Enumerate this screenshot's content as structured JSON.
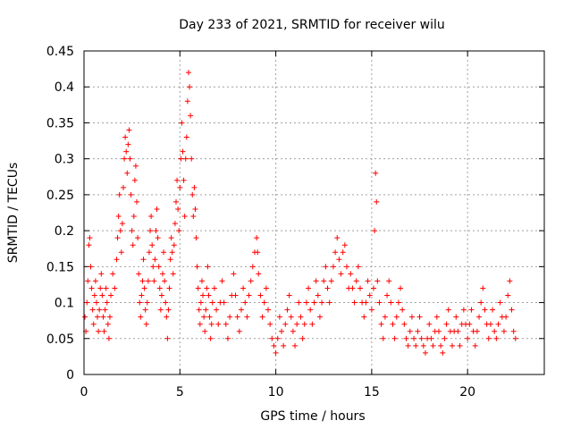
{
  "chart_data": {
    "type": "scatter",
    "title": "Day 233 of 2021, SRMTID for receiver wilu",
    "xlabel": "GPS time / hours",
    "ylabel": "SRMTID / TECUs",
    "xlim": [
      0,
      24
    ],
    "ylim": [
      0,
      0.45
    ],
    "xticks": [
      0,
      5,
      10,
      15,
      20
    ],
    "yticks": [
      0,
      0.05,
      0.1,
      0.15,
      0.2,
      0.25,
      0.3,
      0.35,
      0.4,
      0.45
    ],
    "xtick_labels": [
      "0",
      "5",
      "10",
      "15",
      "20"
    ],
    "ytick_labels": [
      "0",
      "0.05",
      "0.1",
      "0.15",
      "0.2",
      "0.25",
      "0.3",
      "0.35",
      "0.4",
      "0.45"
    ],
    "grid": true,
    "marker": "+",
    "color": "#ff0000",
    "series": [
      {
        "name": "SRMTID",
        "points": [
          [
            0.05,
            0.08
          ],
          [
            0.1,
            0.06
          ],
          [
            0.15,
            0.1
          ],
          [
            0.2,
            0.13
          ],
          [
            0.25,
            0.18
          ],
          [
            0.3,
            0.19
          ],
          [
            0.35,
            0.15
          ],
          [
            0.4,
            0.12
          ],
          [
            0.45,
            0.09
          ],
          [
            0.5,
            0.07
          ],
          [
            0.55,
            0.11
          ],
          [
            0.6,
            0.13
          ],
          [
            0.65,
            0.1
          ],
          [
            0.7,
            0.08
          ],
          [
            0.75,
            0.06
          ],
          [
            0.8,
            0.09
          ],
          [
            0.85,
            0.12
          ],
          [
            0.9,
            0.14
          ],
          [
            0.95,
            0.11
          ],
          [
            1.0,
            0.08
          ],
          [
            1.05,
            0.06
          ],
          [
            1.1,
            0.09
          ],
          [
            1.15,
            0.12
          ],
          [
            1.2,
            0.1
          ],
          [
            1.25,
            0.07
          ],
          [
            1.3,
            0.05
          ],
          [
            1.35,
            0.08
          ],
          [
            1.4,
            0.11
          ],
          [
            1.5,
            0.14
          ],
          [
            1.6,
            0.12
          ],
          [
            1.7,
            0.16
          ],
          [
            1.75,
            0.19
          ],
          [
            1.8,
            0.22
          ],
          [
            1.85,
            0.25
          ],
          [
            1.9,
            0.2
          ],
          [
            1.95,
            0.17
          ],
          [
            2.0,
            0.21
          ],
          [
            2.05,
            0.26
          ],
          [
            2.1,
            0.3
          ],
          [
            2.15,
            0.33
          ],
          [
            2.2,
            0.31
          ],
          [
            2.25,
            0.28
          ],
          [
            2.3,
            0.32
          ],
          [
            2.35,
            0.34
          ],
          [
            2.4,
            0.3
          ],
          [
            2.45,
            0.25
          ],
          [
            2.5,
            0.2
          ],
          [
            2.55,
            0.18
          ],
          [
            2.6,
            0.22
          ],
          [
            2.65,
            0.27
          ],
          [
            2.7,
            0.29
          ],
          [
            2.75,
            0.24
          ],
          [
            2.8,
            0.19
          ],
          [
            2.85,
            0.14
          ],
          [
            2.9,
            0.1
          ],
          [
            2.95,
            0.08
          ],
          [
            3.0,
            0.11
          ],
          [
            3.05,
            0.13
          ],
          [
            3.1,
            0.16
          ],
          [
            3.15,
            0.12
          ],
          [
            3.2,
            0.09
          ],
          [
            3.25,
            0.07
          ],
          [
            3.3,
            0.1
          ],
          [
            3.35,
            0.13
          ],
          [
            3.4,
            0.17
          ],
          [
            3.45,
            0.2
          ],
          [
            3.5,
            0.22
          ],
          [
            3.55,
            0.18
          ],
          [
            3.6,
            0.15
          ],
          [
            3.65,
            0.13
          ],
          [
            3.7,
            0.16
          ],
          [
            3.75,
            0.2
          ],
          [
            3.8,
            0.23
          ],
          [
            3.85,
            0.19
          ],
          [
            3.9,
            0.15
          ],
          [
            3.95,
            0.12
          ],
          [
            4.0,
            0.09
          ],
          [
            4.05,
            0.11
          ],
          [
            4.1,
            0.14
          ],
          [
            4.15,
            0.17
          ],
          [
            4.2,
            0.13
          ],
          [
            4.25,
            0.1
          ],
          [
            4.3,
            0.08
          ],
          [
            4.35,
            0.05
          ],
          [
            4.4,
            0.09
          ],
          [
            4.45,
            0.12
          ],
          [
            4.5,
            0.16
          ],
          [
            4.55,
            0.19
          ],
          [
            4.6,
            0.17
          ],
          [
            4.65,
            0.14
          ],
          [
            4.7,
            0.18
          ],
          [
            4.75,
            0.21
          ],
          [
            4.8,
            0.24
          ],
          [
            4.85,
            0.27
          ],
          [
            4.9,
            0.23
          ],
          [
            4.95,
            0.2
          ],
          [
            5.0,
            0.26
          ],
          [
            5.05,
            0.3
          ],
          [
            5.1,
            0.35
          ],
          [
            5.15,
            0.31
          ],
          [
            5.2,
            0.27
          ],
          [
            5.25,
            0.22
          ],
          [
            5.3,
            0.3
          ],
          [
            5.35,
            0.33
          ],
          [
            5.4,
            0.38
          ],
          [
            5.45,
            0.42
          ],
          [
            5.5,
            0.4
          ],
          [
            5.55,
            0.36
          ],
          [
            5.6,
            0.3
          ],
          [
            5.65,
            0.25
          ],
          [
            5.7,
            0.22
          ],
          [
            5.75,
            0.26
          ],
          [
            5.8,
            0.23
          ],
          [
            5.85,
            0.19
          ],
          [
            5.9,
            0.15
          ],
          [
            5.95,
            0.12
          ],
          [
            6.0,
            0.09
          ],
          [
            6.05,
            0.07
          ],
          [
            6.1,
            0.1
          ],
          [
            6.15,
            0.13
          ],
          [
            6.2,
            0.11
          ],
          [
            6.25,
            0.08
          ],
          [
            6.3,
            0.06
          ],
          [
            6.35,
            0.09
          ],
          [
            6.4,
            0.12
          ],
          [
            6.45,
            0.15
          ],
          [
            6.5,
            0.11
          ],
          [
            6.55,
            0.08
          ],
          [
            6.6,
            0.05
          ],
          [
            6.65,
            0.07
          ],
          [
            6.7,
            0.1
          ],
          [
            6.8,
            0.12
          ],
          [
            6.9,
            0.09
          ],
          [
            7.0,
            0.07
          ],
          [
            7.1,
            0.1
          ],
          [
            7.2,
            0.13
          ],
          [
            7.3,
            0.1
          ],
          [
            7.4,
            0.07
          ],
          [
            7.5,
            0.05
          ],
          [
            7.6,
            0.08
          ],
          [
            7.7,
            0.11
          ],
          [
            7.8,
            0.14
          ],
          [
            7.9,
            0.11
          ],
          [
            8.0,
            0.08
          ],
          [
            8.1,
            0.06
          ],
          [
            8.2,
            0.09
          ],
          [
            8.3,
            0.12
          ],
          [
            8.4,
            0.1
          ],
          [
            8.5,
            0.08
          ],
          [
            8.6,
            0.11
          ],
          [
            8.7,
            0.13
          ],
          [
            8.8,
            0.15
          ],
          [
            8.9,
            0.17
          ],
          [
            9.0,
            0.19
          ],
          [
            9.05,
            0.17
          ],
          [
            9.1,
            0.14
          ],
          [
            9.2,
            0.11
          ],
          [
            9.3,
            0.08
          ],
          [
            9.4,
            0.1
          ],
          [
            9.5,
            0.12
          ],
          [
            9.6,
            0.09
          ],
          [
            9.7,
            0.07
          ],
          [
            9.8,
            0.05
          ],
          [
            9.9,
            0.04
          ],
          [
            10.0,
            0.03
          ],
          [
            10.1,
            0.05
          ],
          [
            10.2,
            0.08
          ],
          [
            10.3,
            0.06
          ],
          [
            10.4,
            0.04
          ],
          [
            10.5,
            0.07
          ],
          [
            10.6,
            0.09
          ],
          [
            10.7,
            0.11
          ],
          [
            10.8,
            0.08
          ],
          [
            10.9,
            0.06
          ],
          [
            11.0,
            0.04
          ],
          [
            11.1,
            0.07
          ],
          [
            11.2,
            0.1
          ],
          [
            11.3,
            0.08
          ],
          [
            11.4,
            0.05
          ],
          [
            11.5,
            0.07
          ],
          [
            11.6,
            0.1
          ],
          [
            11.7,
            0.12
          ],
          [
            11.8,
            0.09
          ],
          [
            11.9,
            0.07
          ],
          [
            12.0,
            0.1
          ],
          [
            12.1,
            0.13
          ],
          [
            12.2,
            0.11
          ],
          [
            12.3,
            0.08
          ],
          [
            12.4,
            0.1
          ],
          [
            12.5,
            0.13
          ],
          [
            12.6,
            0.15
          ],
          [
            12.7,
            0.12
          ],
          [
            12.8,
            0.1
          ],
          [
            12.9,
            0.13
          ],
          [
            13.0,
            0.15
          ],
          [
            13.1,
            0.17
          ],
          [
            13.2,
            0.19
          ],
          [
            13.3,
            0.16
          ],
          [
            13.4,
            0.14
          ],
          [
            13.5,
            0.17
          ],
          [
            13.6,
            0.18
          ],
          [
            13.7,
            0.15
          ],
          [
            13.8,
            0.12
          ],
          [
            13.9,
            0.14
          ],
          [
            14.0,
            0.12
          ],
          [
            14.1,
            0.1
          ],
          [
            14.2,
            0.13
          ],
          [
            14.3,
            0.15
          ],
          [
            14.4,
            0.12
          ],
          [
            14.5,
            0.1
          ],
          [
            14.6,
            0.08
          ],
          [
            14.7,
            0.1
          ],
          [
            14.8,
            0.13
          ],
          [
            14.9,
            0.11
          ],
          [
            15.0,
            0.09
          ],
          [
            15.1,
            0.12
          ],
          [
            15.15,
            0.2
          ],
          [
            15.2,
            0.28
          ],
          [
            15.25,
            0.24
          ],
          [
            15.3,
            0.13
          ],
          [
            15.4,
            0.1
          ],
          [
            15.5,
            0.07
          ],
          [
            15.6,
            0.05
          ],
          [
            15.7,
            0.08
          ],
          [
            15.8,
            0.11
          ],
          [
            15.9,
            0.13
          ],
          [
            16.0,
            0.1
          ],
          [
            16.1,
            0.07
          ],
          [
            16.2,
            0.05
          ],
          [
            16.3,
            0.08
          ],
          [
            16.4,
            0.1
          ],
          [
            16.5,
            0.12
          ],
          [
            16.6,
            0.09
          ],
          [
            16.7,
            0.07
          ],
          [
            16.8,
            0.05
          ],
          [
            16.9,
            0.04
          ],
          [
            17.0,
            0.06
          ],
          [
            17.1,
            0.08
          ],
          [
            17.2,
            0.05
          ],
          [
            17.3,
            0.04
          ],
          [
            17.4,
            0.06
          ],
          [
            17.5,
            0.08
          ],
          [
            17.6,
            0.05
          ],
          [
            17.7,
            0.04
          ],
          [
            17.8,
            0.03
          ],
          [
            17.9,
            0.05
          ],
          [
            18.0,
            0.07
          ],
          [
            18.1,
            0.05
          ],
          [
            18.2,
            0.04
          ],
          [
            18.3,
            0.06
          ],
          [
            18.4,
            0.08
          ],
          [
            18.5,
            0.06
          ],
          [
            18.6,
            0.04
          ],
          [
            18.7,
            0.03
          ],
          [
            18.8,
            0.05
          ],
          [
            18.9,
            0.07
          ],
          [
            19.0,
            0.09
          ],
          [
            19.1,
            0.06
          ],
          [
            19.2,
            0.04
          ],
          [
            19.3,
            0.06
          ],
          [
            19.4,
            0.08
          ],
          [
            19.5,
            0.06
          ],
          [
            19.6,
            0.04
          ],
          [
            19.7,
            0.07
          ],
          [
            19.8,
            0.09
          ],
          [
            19.9,
            0.07
          ],
          [
            20.0,
            0.05
          ],
          [
            20.1,
            0.07
          ],
          [
            20.2,
            0.09
          ],
          [
            20.3,
            0.06
          ],
          [
            20.4,
            0.04
          ],
          [
            20.5,
            0.06
          ],
          [
            20.6,
            0.08
          ],
          [
            20.7,
            0.1
          ],
          [
            20.8,
            0.12
          ],
          [
            20.9,
            0.09
          ],
          [
            21.0,
            0.07
          ],
          [
            21.1,
            0.05
          ],
          [
            21.2,
            0.07
          ],
          [
            21.3,
            0.09
          ],
          [
            21.4,
            0.06
          ],
          [
            21.5,
            0.05
          ],
          [
            21.6,
            0.07
          ],
          [
            21.7,
            0.1
          ],
          [
            21.8,
            0.08
          ],
          [
            21.9,
            0.06
          ],
          [
            22.0,
            0.08
          ],
          [
            22.1,
            0.11
          ],
          [
            22.2,
            0.13
          ],
          [
            22.3,
            0.09
          ],
          [
            22.4,
            0.06
          ],
          [
            22.5,
            0.05
          ]
        ]
      }
    ]
  }
}
